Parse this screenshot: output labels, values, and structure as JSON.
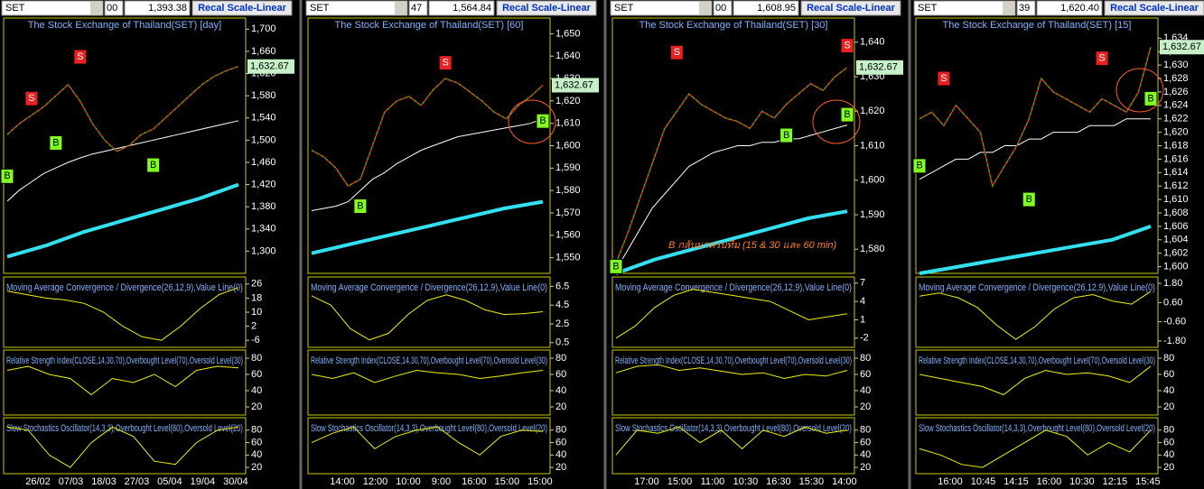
{
  "annotation": "B กลับมาครบทีม (15 & 30 และ 60 min)",
  "panels": [
    {
      "toolbar": {
        "symbol": "SET",
        "field": "00",
        "price": "1,393.38",
        "button": "Recal Scale-Linear"
      },
      "title": "The Stock Exchange of Thailand(SET) [day]",
      "last_price": "1,632.67",
      "ylim": [
        1260,
        1720
      ],
      "yticks": [
        {
          "value": 1700,
          "label": "1,700"
        },
        {
          "value": 1660,
          "label": "1,660"
        },
        {
          "value": 1620,
          "label": "1,620"
        },
        {
          "value": 1580,
          "label": "1,580"
        },
        {
          "value": 1540,
          "label": "1,540"
        },
        {
          "value": 1500,
          "label": "1,500"
        },
        {
          "value": 1460,
          "label": "1,460"
        },
        {
          "value": 1420,
          "label": "1,420"
        },
        {
          "value": 1380,
          "label": "1,380"
        },
        {
          "value": 1340,
          "label": "1,340"
        },
        {
          "value": 1300,
          "label": "1,300"
        }
      ],
      "close": [
        1510,
        1530,
        1545,
        1560,
        1580,
        1600,
        1570,
        1530,
        1500,
        1480,
        1490,
        1510,
        1520,
        1540,
        1560,
        1580,
        1600,
        1615,
        1625,
        1632.67
      ],
      "ma_long": [
        1390,
        1410,
        1425,
        1440,
        1450,
        1460,
        1468,
        1475,
        1480,
        1485,
        1490,
        1495,
        1500,
        1505,
        1510,
        1515,
        1520,
        1525,
        1530,
        1535
      ],
      "ma_cyan": [
        1290,
        1310,
        1335,
        1355,
        1375,
        1395,
        1420
      ],
      "signals": [
        {
          "label": "S",
          "x": 2,
          "price": 1575
        },
        {
          "label": "S",
          "x": 6,
          "price": 1650
        },
        {
          "label": "B",
          "x": 0,
          "price": 1435
        },
        {
          "label": "B",
          "x": 4,
          "price": 1495
        },
        {
          "label": "B",
          "x": 12,
          "price": 1455
        }
      ],
      "macd": {
        "title": "Moving Average Convergence / Divergence(26,12,9),Value Line(0)",
        "ylim": [
          -10,
          30
        ],
        "yticks": [
          26,
          18,
          10,
          2,
          -6
        ],
        "values": [
          22,
          20,
          18,
          17,
          15,
          10,
          2,
          -4,
          -6,
          2,
          12,
          20,
          24
        ]
      },
      "rsi": {
        "title": "Relative Strength Index(CLOSE,14,30,70),Overbought Level(70),Oversold Level(30)",
        "ylim": [
          10,
          90
        ],
        "yticks": [
          80,
          60,
          40,
          20
        ],
        "values": [
          65,
          70,
          60,
          55,
          35,
          55,
          50,
          60,
          45,
          65,
          70,
          68
        ]
      },
      "stoch": {
        "title": "Slow Stochastics Oscillator(14,3,3),Overbought Level(80),Oversold Level(20)",
        "ylim": [
          10,
          100
        ],
        "yticks": [
          80,
          60,
          40,
          20
        ],
        "values": [
          85,
          80,
          40,
          20,
          60,
          85,
          70,
          30,
          25,
          60,
          80,
          85
        ]
      },
      "x_labels": [
        "26/02",
        "07/03",
        "18/03",
        "27/03",
        "05/04",
        "19/04",
        "30/04"
      ]
    },
    {
      "toolbar": {
        "symbol": "SET",
        "field": "47",
        "price": "1,564.84",
        "button": "Recal Scale-Linear"
      },
      "title": "The Stock Exchange of Thailand(SET) [60]",
      "last_price": "1,632.67",
      "ylim": [
        1543,
        1657
      ],
      "yticks": [
        {
          "value": 1650,
          "label": "1,650"
        },
        {
          "value": 1640,
          "label": "1,640"
        },
        {
          "value": 1630,
          "label": "1,630"
        },
        {
          "value": 1620,
          "label": "1,620"
        },
        {
          "value": 1610,
          "label": "1,610"
        },
        {
          "value": 1600,
          "label": "1,600"
        },
        {
          "value": 1590,
          "label": "1,590"
        },
        {
          "value": 1580,
          "label": "1,580"
        },
        {
          "value": 1570,
          "label": "1,570"
        },
        {
          "value": 1560,
          "label": "1,560"
        },
        {
          "value": 1550,
          "label": "1,550"
        }
      ],
      "close": [
        1598,
        1595,
        1590,
        1582,
        1585,
        1600,
        1615,
        1620,
        1622,
        1618,
        1625,
        1630,
        1628,
        1624,
        1620,
        1615,
        1612,
        1618,
        1622,
        1627
      ],
      "ma_long": [
        1571,
        1572,
        1573,
        1575,
        1580,
        1585,
        1588,
        1592,
        1595,
        1598,
        1600,
        1602,
        1604,
        1605,
        1606,
        1607,
        1608,
        1609,
        1610,
        1612
      ],
      "ma_cyan": [
        1552,
        1556,
        1560,
        1564,
        1568,
        1572,
        1575
      ],
      "signals": [
        {
          "label": "S",
          "x": 11,
          "price": 1637
        },
        {
          "label": "B",
          "x": 4,
          "price": 1573
        },
        {
          "label": "B",
          "x": 19,
          "price": 1611
        }
      ],
      "macd": {
        "title": "Moving Average Convergence / Divergence(26,12,9),Value Line(0)",
        "ylim": [
          0,
          7.5
        ],
        "yticks": [
          6.5,
          4.5,
          2.5,
          0.5
        ],
        "values": [
          5.5,
          4.5,
          2,
          0.8,
          1.5,
          3.5,
          5,
          5.6,
          5,
          4,
          3.5,
          3.6,
          3.8
        ]
      },
      "rsi": {
        "title": "Relative Strength Index(CLOSE,14,30,70),Overbought Level(70),Oversold Level(30)",
        "ylim": [
          10,
          90
        ],
        "yticks": [
          80,
          60,
          40,
          20
        ],
        "values": [
          60,
          55,
          62,
          50,
          58,
          65,
          62,
          60,
          55,
          58,
          62,
          65
        ]
      },
      "stoch": {
        "title": "Slow Stochastics Oscillator(14,3,3),Overbought Level(80),Oversold Level(20)",
        "ylim": [
          10,
          100
        ],
        "yticks": [
          80,
          60,
          40,
          20
        ],
        "values": [
          60,
          75,
          85,
          50,
          70,
          80,
          85,
          60,
          40,
          70,
          80,
          78
        ]
      },
      "x_labels": [
        "14:00",
        "12:00",
        "10:00",
        "9:00",
        "16:00",
        "15:00",
        "15:00"
      ]
    },
    {
      "toolbar": {
        "symbol": "SET",
        "field": "00",
        "price": "1,608.95",
        "button": "Recal Scale-Linear"
      },
      "title": "The Stock Exchange of Thailand(SET) [30]",
      "last_price": "1,632.67",
      "ylim": [
        1573,
        1647
      ],
      "yticks": [
        {
          "value": 1640,
          "label": "1,640"
        },
        {
          "value": 1630,
          "label": "1,630"
        },
        {
          "value": 1620,
          "label": "1,620"
        },
        {
          "value": 1610,
          "label": "1,610"
        },
        {
          "value": 1600,
          "label": "1,600"
        },
        {
          "value": 1590,
          "label": "1,590"
        },
        {
          "value": 1580,
          "label": "1,580"
        }
      ],
      "close": [
        1576,
        1585,
        1595,
        1605,
        1615,
        1620,
        1625,
        1622,
        1620,
        1618,
        1617,
        1615,
        1620,
        1618,
        1622,
        1625,
        1628,
        1626,
        1630,
        1632.67
      ],
      "ma_long": [
        1574,
        1580,
        1586,
        1592,
        1596,
        1600,
        1604,
        1606,
        1608,
        1609,
        1610,
        1610,
        1611,
        1611,
        1612,
        1612,
        1613,
        1614,
        1615,
        1616
      ],
      "ma_cyan": [
        1573,
        1577,
        1580,
        1583,
        1586,
        1589,
        1591
      ],
      "signals": [
        {
          "label": "S",
          "x": 5,
          "price": 1637
        },
        {
          "label": "S",
          "x": 19,
          "price": 1639
        },
        {
          "label": "B",
          "x": 0,
          "price": 1575
        },
        {
          "label": "B",
          "x": 14,
          "price": 1613
        },
        {
          "label": "B",
          "x": 19,
          "price": 1619
        }
      ],
      "macd": {
        "title": "Moving Average Convergence / Divergence(26,12,9),Value Line(0)",
        "ylim": [
          -3.5,
          8
        ],
        "yticks": [
          7,
          4,
          1,
          -2
        ],
        "values": [
          -2,
          0,
          3,
          5,
          6,
          5.5,
          5,
          4.5,
          4,
          2.5,
          1,
          1.5,
          2
        ]
      },
      "rsi": {
        "title": "Relative Strength Index(CLOSE,14,30,70),Overbought Level(70),Oversold Level(30)",
        "ylim": [
          10,
          90
        ],
        "yticks": [
          80,
          60,
          40,
          20
        ],
        "values": [
          62,
          70,
          72,
          65,
          68,
          64,
          60,
          62,
          55,
          60,
          58,
          65
        ]
      },
      "stoch": {
        "title": "Slow Stochastics Oscillator(14,3,3),Overbought Level(80),Oversold Level(20)",
        "ylim": [
          10,
          100
        ],
        "yticks": [
          80,
          60,
          40,
          20
        ],
        "values": [
          40,
          80,
          75,
          85,
          60,
          80,
          50,
          80,
          70,
          85,
          75,
          80
        ]
      },
      "x_labels": [
        "17:00",
        "15:00",
        "11:00",
        "10:30",
        "16:30",
        "15:30",
        "14:00"
      ]
    },
    {
      "toolbar": {
        "symbol": "SET",
        "field": "39",
        "price": "1,620.40",
        "button": "Recal Scale-Linear"
      },
      "title": "The Stock Exchange of Thailand(SET) [15]",
      "last_price": "1,632.67",
      "ylim": [
        1599,
        1637
      ],
      "yticks": [
        {
          "value": 1634,
          "label": "1,634"
        },
        {
          "value": 1632,
          "label": "1,632"
        },
        {
          "value": 1630,
          "label": "1,630"
        },
        {
          "value": 1628,
          "label": "1,628"
        },
        {
          "value": 1626,
          "label": "1,626"
        },
        {
          "value": 1624,
          "label": "1,624"
        },
        {
          "value": 1622,
          "label": "1,622"
        },
        {
          "value": 1620,
          "label": "1,620"
        },
        {
          "value": 1618,
          "label": "1,618"
        },
        {
          "value": 1616,
          "label": "1,616"
        },
        {
          "value": 1614,
          "label": "1,614"
        },
        {
          "value": 1612,
          "label": "1,612"
        },
        {
          "value": 1610,
          "label": "1,610"
        },
        {
          "value": 1608,
          "label": "1,608"
        },
        {
          "value": 1606,
          "label": "1,606"
        },
        {
          "value": 1604,
          "label": "1,604"
        },
        {
          "value": 1602,
          "label": "1,602"
        },
        {
          "value": 1600,
          "label": "1,600"
        }
      ],
      "close": [
        1622,
        1623,
        1621,
        1624,
        1622,
        1620,
        1612,
        1615,
        1618,
        1622,
        1628,
        1626,
        1625,
        1624,
        1623,
        1625,
        1624,
        1623,
        1626,
        1632.67
      ],
      "ma_long": [
        1613,
        1614,
        1615,
        1616,
        1616,
        1617,
        1617,
        1618,
        1618,
        1619,
        1619,
        1620,
        1620,
        1620,
        1621,
        1621,
        1621,
        1622,
        1622,
        1622
      ],
      "ma_cyan": [
        1599,
        1600,
        1601,
        1602,
        1603,
        1604,
        1606
      ],
      "signals": [
        {
          "label": "S",
          "x": 2,
          "price": 1628
        },
        {
          "label": "S",
          "x": 15,
          "price": 1631
        },
        {
          "label": "B",
          "x": 0,
          "price": 1615
        },
        {
          "label": "B",
          "x": 9,
          "price": 1610
        },
        {
          "label": "B",
          "x": 19,
          "price": 1625
        }
      ],
      "macd": {
        "title": "Moving Average Convergence / Divergence(26,12,9),Value Line(0)",
        "ylim": [
          -2.2,
          2.2
        ],
        "yticks": [
          {
            "value": 1.8,
            "label": "1.80"
          },
          {
            "value": 0.6,
            "label": "0.60"
          },
          {
            "value": -0.6,
            "label": "-0.60"
          },
          {
            "value": -1.8,
            "label": "-1.80"
          }
        ],
        "values": [
          1,
          1.2,
          0.9,
          0.3,
          -0.8,
          -1.7,
          -0.9,
          0.2,
          0.9,
          1.1,
          0.7,
          0.5,
          1.3
        ]
      },
      "rsi": {
        "title": "Relative Strength Index(CLOSE,14,30,70),Overbought Level(70),Oversold Level(30)",
        "ylim": [
          10,
          90
        ],
        "yticks": [
          80,
          60,
          40,
          20
        ],
        "values": [
          60,
          55,
          50,
          45,
          35,
          55,
          65,
          60,
          62,
          58,
          50,
          70
        ]
      },
      "stoch": {
        "title": "Slow Stochastics Oscillator(14,3,3),Overbought Level(80),Oversold Level(20)",
        "ylim": [
          10,
          100
        ],
        "yticks": [
          80,
          60,
          40,
          20
        ],
        "values": [
          50,
          40,
          25,
          20,
          40,
          60,
          80,
          70,
          40,
          60,
          45,
          80
        ]
      },
      "x_labels": [
        "16:00",
        "10:45",
        "14:15",
        "16:00",
        "10:30",
        "12:15",
        "15:45"
      ]
    }
  ]
}
